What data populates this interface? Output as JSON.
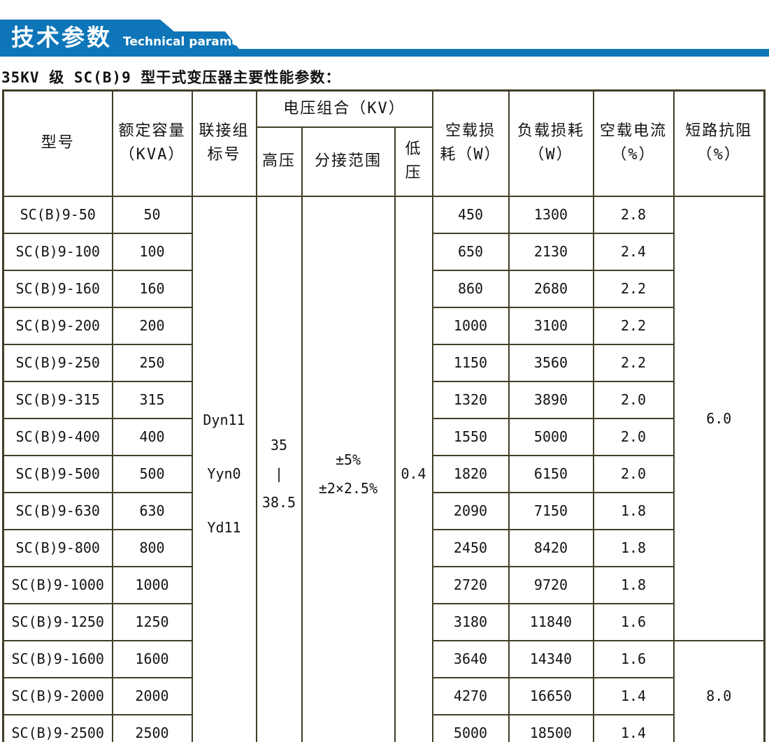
{
  "banner": {
    "title_cn": "技术参数",
    "title_en": "Technical parameter",
    "accent_color": "#0d75b8"
  },
  "caption": "35KV 级 SC(B)9 型干式变压器主要性能参数：",
  "table": {
    "headers": {
      "model": "型号",
      "capacity": [
        "额定容量",
        "（KVA）"
      ],
      "connection": [
        "联接组",
        "标号"
      ],
      "voltage_combo": "电压组合（KV）",
      "hv": "高压",
      "tap_range": "分接范围",
      "lv": [
        "低",
        "压"
      ],
      "no_load_loss": [
        "空载损",
        "耗（W）"
      ],
      "load_loss": [
        "负载损耗",
        "（W）"
      ],
      "no_load_current": [
        "空载电流",
        "（%）"
      ],
      "impedance": [
        "短路抗阻",
        "（%）"
      ]
    },
    "merged": {
      "connection_labels": [
        "Dyn11",
        "Yyn0",
        "Yd11"
      ],
      "hv_lines": [
        "35",
        "|",
        "38.5"
      ],
      "tap_lines": [
        "±5%",
        "±2×2.5%"
      ],
      "lv_value": "0.4",
      "impedance_top": "6.0",
      "impedance_bottom": "8.0"
    },
    "rows": [
      {
        "model": "SC(B)9-50",
        "capacity": "50",
        "no_load_loss": "450",
        "load_loss": "1300",
        "no_load_current": "2.8"
      },
      {
        "model": "SC(B)9-100",
        "capacity": "100",
        "no_load_loss": "650",
        "load_loss": "2130",
        "no_load_current": "2.4"
      },
      {
        "model": "SC(B)9-160",
        "capacity": "160",
        "no_load_loss": "860",
        "load_loss": "2680",
        "no_load_current": "2.2"
      },
      {
        "model": "SC(B)9-200",
        "capacity": "200",
        "no_load_loss": "1000",
        "load_loss": "3100",
        "no_load_current": "2.2"
      },
      {
        "model": "SC(B)9-250",
        "capacity": "250",
        "no_load_loss": "1150",
        "load_loss": "3560",
        "no_load_current": "2.2"
      },
      {
        "model": "SC(B)9-315",
        "capacity": "315",
        "no_load_loss": "1320",
        "load_loss": "3890",
        "no_load_current": "2.0"
      },
      {
        "model": "SC(B)9-400",
        "capacity": "400",
        "no_load_loss": "1550",
        "load_loss": "5000",
        "no_load_current": "2.0"
      },
      {
        "model": "SC(B)9-500",
        "capacity": "500",
        "no_load_loss": "1820",
        "load_loss": "6150",
        "no_load_current": "2.0"
      },
      {
        "model": "SC(B)9-630",
        "capacity": "630",
        "no_load_loss": "2090",
        "load_loss": "7150",
        "no_load_current": "1.8"
      },
      {
        "model": "SC(B)9-800",
        "capacity": "800",
        "no_load_loss": "2450",
        "load_loss": "8420",
        "no_load_current": "1.8"
      },
      {
        "model": "SC(B)9-1000",
        "capacity": "1000",
        "no_load_loss": "2720",
        "load_loss": "9720",
        "no_load_current": "1.8"
      },
      {
        "model": "SC(B)9-1250",
        "capacity": "1250",
        "no_load_loss": "3180",
        "load_loss": "11840",
        "no_load_current": "1.6"
      },
      {
        "model": "SC(B)9-1600",
        "capacity": "1600",
        "no_load_loss": "3640",
        "load_loss": "14340",
        "no_load_current": "1.6"
      },
      {
        "model": "SC(B)9-2000",
        "capacity": "2000",
        "no_load_loss": "4270",
        "load_loss": "16650",
        "no_load_current": "1.4"
      },
      {
        "model": "SC(B)9-2500",
        "capacity": "2500",
        "no_load_loss": "5000",
        "load_loss": "18500",
        "no_load_current": "1.4"
      }
    ]
  }
}
